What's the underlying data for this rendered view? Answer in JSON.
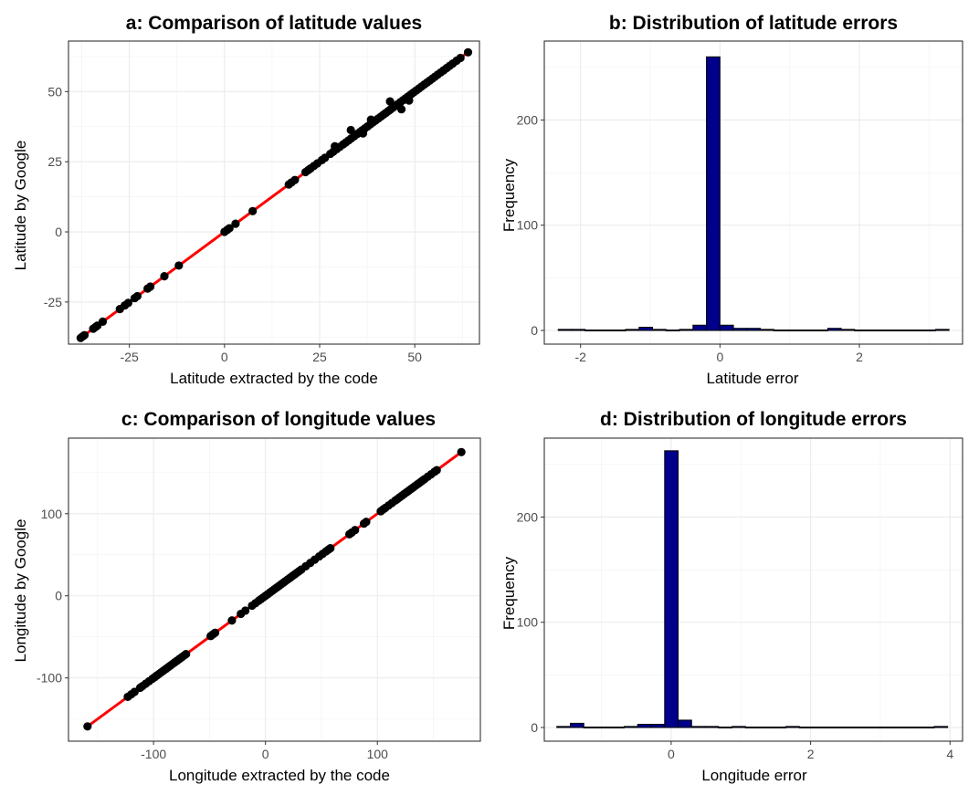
{
  "chart_data": [
    {
      "type": "scatter",
      "panel": "a",
      "title": "a: Comparison of latitude values",
      "xlabel": "Latitude extracted by the code",
      "ylabel": "Latitude by Google",
      "xlim": [
        -41,
        67
      ],
      "ylim": [
        -40,
        68
      ],
      "xticks": [
        -25,
        0,
        25,
        50
      ],
      "xtick_labels": [
        "-25",
        "0",
        "25",
        "50"
      ],
      "yticks": [
        -25,
        0,
        25,
        50
      ],
      "ytick_labels": [
        "-25",
        "0",
        "25",
        "50"
      ],
      "grid": true,
      "reference_line": {
        "from": [
          -38,
          -38
        ],
        "to": [
          64,
          64
        ],
        "color": "#ff0000"
      },
      "point_color": "#000000",
      "points_x": [
        -37.8,
        -37.2,
        -36.8,
        -34.5,
        -33.9,
        -33.4,
        -32.0,
        -27.5,
        -26.2,
        -25.3,
        -23.6,
        -22.9,
        -20.2,
        -19.5,
        -15.8,
        -12.0,
        0.0,
        0.7,
        1.3,
        2.9,
        7.4,
        16.9,
        17.6,
        18.5,
        21.3,
        22.0,
        22.6,
        23.5,
        24.4,
        25.6,
        26.4,
        27.8,
        28.6,
        29.5,
        30.3,
        31.2,
        31.9,
        32.6,
        33.3,
        34.1,
        34.9,
        35.6,
        36.2,
        36.9,
        37.6,
        38.3,
        39.0,
        39.7,
        40.4,
        41.1,
        41.8,
        42.4,
        43.1,
        43.6,
        44.2,
        44.9,
        45.5,
        46.2,
        46.9,
        47.6,
        48.3,
        49.0,
        49.7,
        50.4,
        51.1,
        51.8,
        52.5,
        53.2,
        53.9,
        54.6,
        55.3,
        56.0,
        56.8,
        57.6,
        58.4,
        59.2,
        60.0,
        61.0,
        62.0,
        64.0,
        36.4,
        43.5,
        46.5,
        33.2,
        38.5,
        29.0,
        48.5
      ],
      "points_y": [
        -37.8,
        -37.2,
        -36.8,
        -34.5,
        -33.9,
        -33.4,
        -32.0,
        -27.5,
        -26.2,
        -25.3,
        -23.6,
        -22.9,
        -20.2,
        -19.5,
        -15.8,
        -12.0,
        0.0,
        0.7,
        1.3,
        2.9,
        7.4,
        16.9,
        17.6,
        18.5,
        21.3,
        22.0,
        22.6,
        23.5,
        24.4,
        25.6,
        26.4,
        27.8,
        28.6,
        29.5,
        30.3,
        31.2,
        31.9,
        32.6,
        33.3,
        34.1,
        34.9,
        35.6,
        36.2,
        36.9,
        37.6,
        38.3,
        39.0,
        39.7,
        40.4,
        41.1,
        41.8,
        42.4,
        43.1,
        43.6,
        44.2,
        44.9,
        45.5,
        46.2,
        46.9,
        47.6,
        48.3,
        49.0,
        49.7,
        50.4,
        51.1,
        51.8,
        52.5,
        53.2,
        53.9,
        54.6,
        55.3,
        56.0,
        56.8,
        57.6,
        58.4,
        59.2,
        60.0,
        61.0,
        62.0,
        64.0,
        35.1,
        46.5,
        43.7,
        36.3,
        40.0,
        30.5,
        46.8
      ]
    },
    {
      "type": "bar",
      "panel": "b",
      "title": "b: Distribution of latitude errors",
      "xlabel": "Latitude error",
      "ylabel": "Frequency",
      "xlim": [
        -2.52,
        3.48
      ],
      "ylim": [
        -13,
        275
      ],
      "xticks": [
        -2,
        0,
        2
      ],
      "xtick_labels": [
        "-2",
        "0",
        "2"
      ],
      "yticks": [
        0,
        100,
        200
      ],
      "ytick_labels": [
        "0",
        "100",
        "200"
      ],
      "grid": true,
      "bar_color": "#00008b",
      "bin_width": 0.1933,
      "bin_start": -2.32,
      "values": [
        1,
        1,
        0,
        0,
        0,
        1,
        3,
        1,
        0,
        1,
        5,
        260,
        5,
        2,
        2,
        1,
        0,
        0,
        0,
        0,
        2,
        1,
        0,
        0,
        0,
        0,
        0,
        0,
        1
      ]
    },
    {
      "type": "scatter",
      "panel": "c",
      "title": "c: Comparison of longitude values",
      "xlabel": "Longitude extracted by the code",
      "ylabel": "Longitude by Google",
      "xlim": [
        -176,
        192
      ],
      "ylim": [
        -177,
        192
      ],
      "xticks": [
        -100,
        0,
        100
      ],
      "xtick_labels": [
        "-100",
        "0",
        "100"
      ],
      "yticks": [
        -100,
        0,
        100
      ],
      "ytick_labels": [
        "-100",
        "0",
        "100"
      ],
      "grid": true,
      "reference_line": {
        "from": [
          -159,
          -159
        ],
        "to": [
          175,
          175
        ],
        "color": "#ff0000"
      },
      "point_color": "#000000",
      "points_x": [
        -159,
        -123,
        -120,
        -117,
        -112,
        -110,
        -107,
        -104,
        -101,
        -99,
        -97,
        -95,
        -93,
        -91,
        -89,
        -87,
        -85,
        -83,
        -81,
        -79,
        -77,
        -75,
        -73,
        -71,
        -49,
        -47,
        -45,
        -30,
        -22,
        -18,
        -12,
        -9,
        -6,
        -4,
        -2,
        0,
        2,
        4,
        6,
        8,
        10,
        12,
        14,
        16,
        18,
        20,
        22,
        24,
        26,
        28,
        30,
        32,
        36,
        40,
        44,
        48,
        51,
        54,
        56,
        58,
        75,
        77,
        80,
        88,
        90,
        103,
        105,
        107,
        110,
        113,
        116,
        118,
        120,
        122,
        124,
        126,
        128,
        130,
        132,
        134,
        136,
        138,
        140,
        142,
        145,
        148,
        151,
        153,
        175
      ],
      "points_y": [
        -159,
        -123,
        -120,
        -117,
        -112,
        -110,
        -107,
        -104,
        -101,
        -99,
        -97,
        -95,
        -93,
        -91,
        -89,
        -87,
        -85,
        -83,
        -81,
        -79,
        -77,
        -75,
        -73,
        -71,
        -49,
        -47,
        -45,
        -30,
        -22,
        -18,
        -12,
        -9,
        -6,
        -4,
        -2,
        0,
        2,
        4,
        6,
        8,
        10,
        12,
        14,
        16,
        18,
        20,
        22,
        24,
        26,
        28,
        30,
        32,
        36,
        40,
        44,
        48,
        51,
        54,
        56,
        58,
        75,
        77,
        80,
        88,
        90,
        103,
        105,
        107,
        110,
        113,
        116,
        118,
        120,
        122,
        124,
        126,
        128,
        130,
        132,
        134,
        136,
        138,
        140,
        142,
        145,
        148,
        151,
        153,
        175
      ]
    },
    {
      "type": "bar",
      "panel": "d",
      "title": "d: Distribution of longitude errors",
      "xlabel": "Longitude error",
      "ylabel": "Frequency",
      "xlim": [
        -1.82,
        4.18
      ],
      "ylim": [
        -13,
        275
      ],
      "xticks": [
        0,
        2,
        4
      ],
      "xtick_labels": [
        "0",
        "2",
        "4"
      ],
      "yticks": [
        0,
        100,
        200
      ],
      "ytick_labels": [
        "0",
        "100",
        "200"
      ],
      "grid": true,
      "bar_color": "#00008b",
      "bin_width": 0.1933,
      "bin_start": -1.64,
      "values": [
        1,
        4,
        0,
        0,
        0,
        1,
        3,
        3,
        263,
        7,
        1,
        1,
        0,
        1,
        0,
        0,
        0,
        1,
        0,
        0,
        0,
        0,
        0,
        0,
        0,
        0,
        0,
        0,
        1
      ]
    }
  ]
}
